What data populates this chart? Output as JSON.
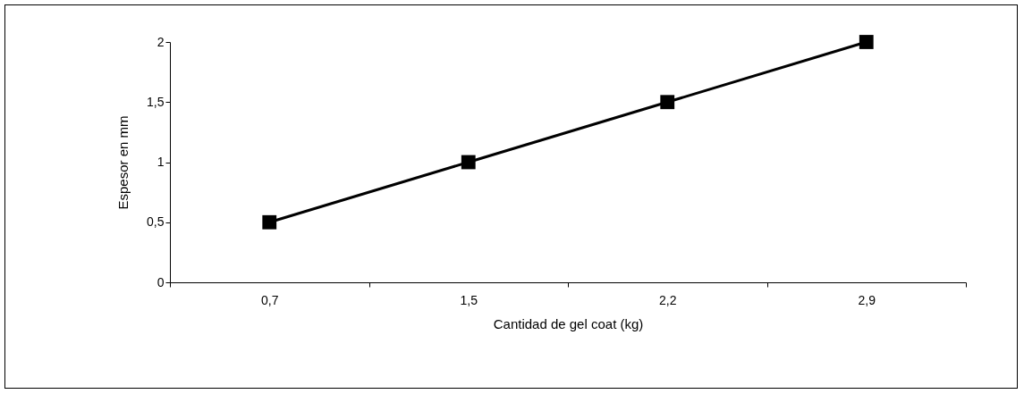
{
  "chart_data": {
    "type": "line",
    "xlabel": "Cantidad de gel coat (kg)",
    "ylabel": "Espesor en mm",
    "categories": [
      "0,7",
      "1,5",
      "2,2",
      "2,9"
    ],
    "values": [
      0.5,
      1,
      1.5,
      2
    ],
    "color": "#000000",
    "marker": "square",
    "line_style": "solid",
    "ylim": [
      0,
      2
    ],
    "yticks": [
      0,
      {
        "value": 0.5,
        "label": "0,5"
      },
      1,
      {
        "value": 1.5,
        "label": "1,5"
      },
      2
    ]
  }
}
